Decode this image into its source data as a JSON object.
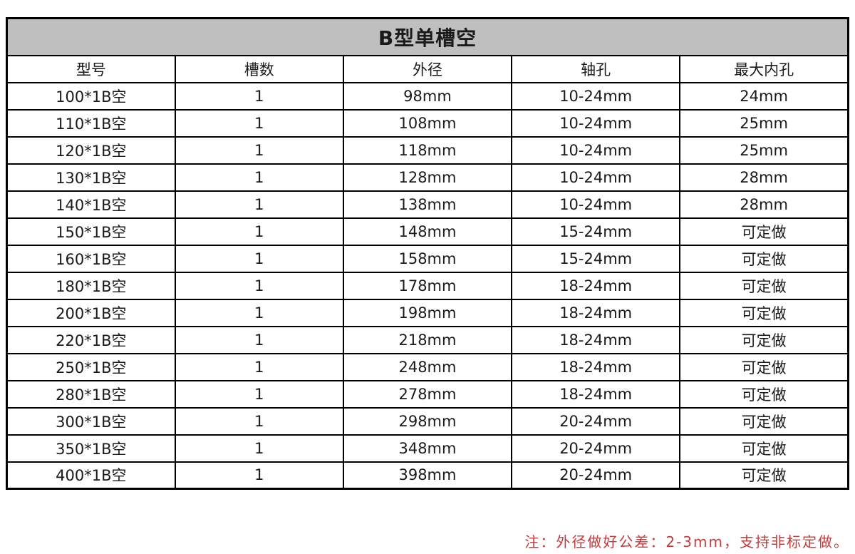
{
  "table": {
    "title": "B型单槽空",
    "title_bg_color": "#bfbfbf",
    "border_color": "#000000",
    "columns": [
      "型号",
      "槽数",
      "外径",
      "轴孔",
      "最大内孔"
    ],
    "rows": [
      [
        "100*1B空",
        "1",
        "98mm",
        "10-24mm",
        "24mm"
      ],
      [
        "110*1B空",
        "1",
        "108mm",
        "10-24mm",
        "25mm"
      ],
      [
        "120*1B空",
        "1",
        "118mm",
        "10-24mm",
        "25mm"
      ],
      [
        "130*1B空",
        "1",
        "128mm",
        "10-24mm",
        "28mm"
      ],
      [
        "140*1B空",
        "1",
        "138mm",
        "10-24mm",
        "28mm"
      ],
      [
        "150*1B空",
        "1",
        "148mm",
        "15-24mm",
        "可定做"
      ],
      [
        "160*1B空",
        "1",
        "158mm",
        "15-24mm",
        "可定做"
      ],
      [
        "180*1B空",
        "1",
        "178mm",
        "18-24mm",
        "可定做"
      ],
      [
        "200*1B空",
        "1",
        "198mm",
        "18-24mm",
        "可定做"
      ],
      [
        "220*1B空",
        "1",
        "218mm",
        "18-24mm",
        "可定做"
      ],
      [
        "250*1B空",
        "1",
        "248mm",
        "18-24mm",
        "可定做"
      ],
      [
        "280*1B空",
        "1",
        "278mm",
        "18-24mm",
        "可定做"
      ],
      [
        "300*1B空",
        "1",
        "298mm",
        "20-24mm",
        "可定做"
      ],
      [
        "350*1B空",
        "1",
        "348mm",
        "20-24mm",
        "可定做"
      ],
      [
        "400*1B空",
        "1",
        "398mm",
        "20-24mm",
        "可定做"
      ]
    ]
  },
  "footnote": {
    "text": "注：外径做好公差：2-3mm，支持非标定做。",
    "color": "#c43b3b"
  }
}
